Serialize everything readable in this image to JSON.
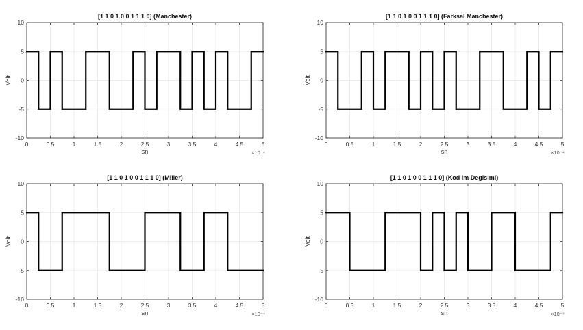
{
  "chart_data": [
    {
      "type": "line",
      "step": true,
      "title": "[1 1 0 1 0 0 1 1 1 0] (Manchester)",
      "xlabel": "sn",
      "ylabel": "Volt",
      "x_multiplier": "×10⁻⁴",
      "xlim": [
        0,
        5
      ],
      "ylim": [
        -10,
        10
      ],
      "xticks": [
        0,
        0.5,
        1,
        1.5,
        2,
        2.5,
        3,
        3.5,
        4,
        4.5,
        5
      ],
      "yticks": [
        10,
        5,
        0,
        -5,
        -10
      ],
      "grid": true,
      "x": [
        0,
        0.25,
        0.25,
        0.5,
        0.5,
        0.75,
        0.75,
        1.25,
        1.25,
        1.75,
        1.75,
        2.25,
        2.25,
        2.5,
        2.5,
        2.75,
        2.75,
        3.25,
        3.25,
        3.5,
        3.5,
        3.75,
        3.75,
        4.0,
        4.0,
        4.25,
        4.25,
        4.75,
        4.75,
        5.0
      ],
      "y": [
        5,
        5,
        -5,
        -5,
        5,
        5,
        -5,
        -5,
        5,
        5,
        -5,
        -5,
        5,
        5,
        -5,
        -5,
        5,
        5,
        -5,
        -5,
        5,
        5,
        -5,
        -5,
        5,
        5,
        -5,
        -5,
        5,
        5
      ]
    },
    {
      "type": "line",
      "step": true,
      "title": "[1 1 0 1 0 0 1 1 1 0] (Farksal Manchester)",
      "xlabel": "sn",
      "ylabel": "Volt",
      "x_multiplier": "×10⁻⁴",
      "xlim": [
        0,
        5
      ],
      "ylim": [
        -10,
        10
      ],
      "xticks": [
        0,
        0.5,
        1,
        1.5,
        2,
        2.5,
        3,
        3.5,
        4,
        4.5,
        5
      ],
      "yticks": [
        10,
        5,
        0,
        -5,
        -10
      ],
      "grid": true,
      "x": [
        0,
        0.25,
        0.25,
        0.75,
        0.75,
        1.0,
        1.0,
        1.25,
        1.25,
        1.75,
        1.75,
        2.0,
        2.0,
        2.25,
        2.25,
        2.5,
        2.5,
        2.75,
        2.75,
        3.25,
        3.25,
        3.75,
        3.75,
        4.25,
        4.25,
        4.5,
        4.5,
        4.75,
        4.75,
        5.0
      ],
      "y": [
        5,
        5,
        -5,
        -5,
        5,
        5,
        -5,
        -5,
        5,
        5,
        -5,
        -5,
        5,
        5,
        -5,
        -5,
        5,
        5,
        -5,
        -5,
        5,
        5,
        -5,
        -5,
        5,
        5,
        -5,
        -5,
        5,
        5
      ]
    },
    {
      "type": "line",
      "step": true,
      "title": "[1 1 0 1 0 0 1 1 1 0] (Miller)",
      "xlabel": "sn",
      "ylabel": "Volt",
      "x_multiplier": "×10⁻⁴",
      "xlim": [
        0,
        5
      ],
      "ylim": [
        -10,
        10
      ],
      "xticks": [
        0,
        0.5,
        1,
        1.5,
        2,
        2.5,
        3,
        3.5,
        4,
        4.5,
        5
      ],
      "yticks": [
        10,
        5,
        0,
        -5,
        -10
      ],
      "grid": true,
      "x": [
        0,
        0.25,
        0.25,
        0.75,
        0.75,
        1.75,
        1.75,
        2.5,
        2.5,
        3.25,
        3.25,
        3.75,
        3.75,
        4.25,
        4.25,
        5.0
      ],
      "y": [
        5,
        5,
        -5,
        -5,
        5,
        5,
        -5,
        -5,
        5,
        5,
        -5,
        -5,
        5,
        5,
        -5,
        -5
      ]
    },
    {
      "type": "line",
      "step": true,
      "title": "[1 1 0 1 0 0 1 1 1 0] (Kod Im Degisimi)",
      "xlabel": "sn",
      "ylabel": "Volt",
      "x_multiplier": "×10⁻⁴",
      "xlim": [
        0,
        5
      ],
      "ylim": [
        -10,
        10
      ],
      "xticks": [
        0,
        0.5,
        1,
        1.5,
        2,
        2.5,
        3,
        3.5,
        4,
        4.5,
        5
      ],
      "yticks": [
        10,
        5,
        0,
        -5,
        -10
      ],
      "grid": true,
      "x": [
        0,
        0.5,
        0.5,
        1.25,
        1.25,
        2.0,
        2.0,
        2.25,
        2.25,
        2.5,
        2.5,
        2.75,
        2.75,
        3.0,
        3.0,
        3.5,
        3.5,
        4.0,
        4.0,
        4.75,
        4.75,
        5.0
      ],
      "y": [
        5,
        5,
        -5,
        -5,
        5,
        5,
        -5,
        -5,
        5,
        5,
        -5,
        -5,
        5,
        5,
        -5,
        -5,
        5,
        5,
        -5,
        -5,
        5,
        5
      ]
    }
  ]
}
